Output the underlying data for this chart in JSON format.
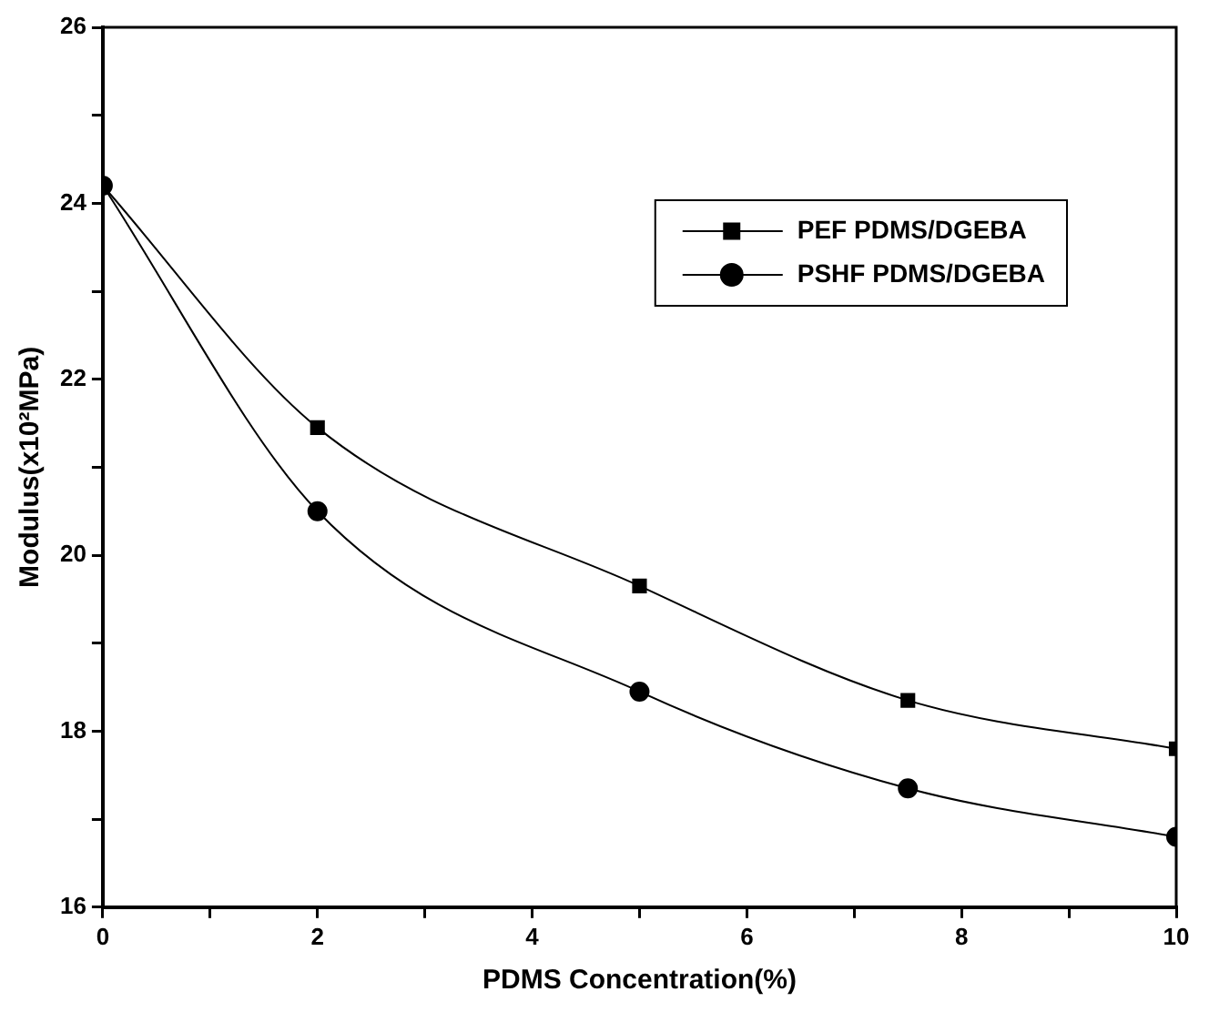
{
  "chart_data": {
    "type": "line",
    "xlabel": "PDMS Concentration(%)",
    "ylabel": "Modulus(x10²MPa)",
    "x": [
      0,
      2,
      5,
      7.5,
      10
    ],
    "series": [
      {
        "name": "PEF PDMS/DGEBA",
        "color": "#000000",
        "marker": "square",
        "values": [
          24.2,
          21.45,
          19.65,
          18.35,
          17.8
        ]
      },
      {
        "name": "PSHF PDMS/DGEBA",
        "color": "#000000",
        "marker": "circle",
        "values": [
          24.2,
          20.5,
          18.45,
          17.35,
          16.8
        ]
      }
    ],
    "xlim": [
      0,
      10
    ],
    "ylim": [
      16,
      26
    ],
    "xticks": [
      0,
      {
        "value": 1,
        "label": null
      },
      2,
      {
        "value": 3,
        "label": null
      },
      4,
      {
        "value": 5,
        "label": null
      },
      6,
      {
        "value": 7,
        "label": null
      },
      8,
      {
        "value": 9,
        "label": null
      },
      10
    ],
    "yticks": [
      16,
      {
        "value": 17,
        "label": null
      },
      18,
      {
        "value": 19,
        "label": null
      },
      20,
      {
        "value": 21,
        "label": null
      },
      22,
      {
        "value": 23,
        "label": null
      },
      24,
      {
        "value": 25,
        "label": null
      },
      26
    ],
    "grid": false,
    "legend": "top right",
    "line_style": "solid"
  }
}
